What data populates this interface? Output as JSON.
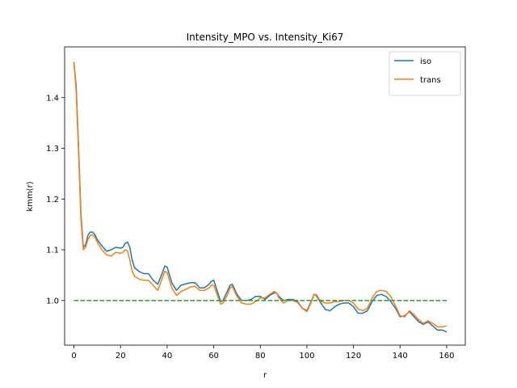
{
  "chart_data": {
    "type": "line",
    "title": "Intensity_MPO vs. Intensity_Ki67",
    "xlabel": "r",
    "ylabel": "kmm(r)",
    "xlim": [
      -4,
      168
    ],
    "ylim": [
      0.912,
      1.5
    ],
    "xticks": [
      0,
      20,
      40,
      60,
      80,
      100,
      120,
      140,
      160
    ],
    "yticks": [
      1.0,
      1.1,
      1.2,
      1.3,
      1.4
    ],
    "ytick_labels": [
      "1.0",
      "1.1",
      "1.2",
      "1.3",
      "1.4"
    ],
    "grid": false,
    "legend_position": "top-right",
    "series": [
      {
        "name": "iso",
        "color": "#1f77b4",
        "style": "solid",
        "x": [
          0,
          1,
          2,
          3,
          4,
          5,
          6,
          7,
          8,
          9,
          10,
          12,
          14,
          16,
          18,
          20,
          21,
          22,
          23,
          24,
          25,
          26,
          28,
          30,
          32,
          34,
          36,
          38,
          39,
          40,
          42,
          44,
          46,
          48,
          50,
          52,
          54,
          56,
          58,
          59,
          60,
          62,
          63,
          64,
          66,
          67,
          68,
          70,
          72,
          74,
          76,
          78,
          80,
          82,
          84,
          86,
          87,
          88,
          90,
          92,
          94,
          96,
          98,
          100,
          102,
          103,
          104,
          106,
          108,
          110,
          112,
          114,
          116,
          118,
          120,
          122,
          124,
          126,
          128,
          130,
          132,
          134,
          136,
          138,
          140,
          142,
          144,
          146,
          148,
          150,
          152,
          154,
          156,
          158,
          160
        ],
        "y": [
          1.47,
          1.42,
          1.3,
          1.17,
          1.105,
          1.11,
          1.128,
          1.135,
          1.135,
          1.13,
          1.12,
          1.108,
          1.097,
          1.1,
          1.105,
          1.103,
          1.105,
          1.113,
          1.115,
          1.105,
          1.08,
          1.065,
          1.057,
          1.053,
          1.053,
          1.04,
          1.032,
          1.055,
          1.068,
          1.066,
          1.035,
          1.02,
          1.03,
          1.033,
          1.035,
          1.035,
          1.025,
          1.025,
          1.032,
          1.038,
          1.04,
          1.012,
          0.998,
          1.0,
          1.02,
          1.03,
          1.032,
          1.012,
          1.0,
          1.0,
          1.002,
          1.008,
          1.008,
          1.002,
          1.01,
          1.015,
          1.015,
          1.008,
          1.0,
          1.002,
          1.002,
          0.998,
          0.985,
          0.98,
          1.0,
          1.012,
          1.01,
          0.995,
          0.982,
          0.98,
          0.988,
          0.993,
          0.995,
          0.995,
          0.988,
          0.975,
          0.975,
          0.98,
          0.998,
          1.01,
          1.012,
          1.008,
          0.998,
          0.985,
          0.968,
          0.97,
          0.978,
          0.968,
          0.958,
          0.953,
          0.958,
          0.95,
          0.942,
          0.942,
          0.938
        ]
      },
      {
        "name": "trans",
        "color": "#ff7f0e",
        "style": "solid",
        "x": [
          0,
          1,
          2,
          3,
          4,
          5,
          6,
          7,
          8,
          9,
          10,
          12,
          14,
          16,
          18,
          20,
          21,
          22,
          23,
          24,
          25,
          26,
          28,
          30,
          32,
          34,
          36,
          38,
          39,
          40,
          42,
          44,
          46,
          48,
          50,
          52,
          54,
          56,
          58,
          59,
          60,
          62,
          63,
          64,
          66,
          67,
          68,
          70,
          72,
          74,
          76,
          78,
          80,
          82,
          84,
          86,
          87,
          88,
          90,
          92,
          94,
          96,
          98,
          100,
          102,
          103,
          104,
          106,
          108,
          110,
          112,
          114,
          116,
          118,
          120,
          122,
          124,
          126,
          128,
          130,
          132,
          134,
          136,
          138,
          140,
          142,
          144,
          146,
          148,
          150,
          152,
          154,
          156,
          158,
          160
        ],
        "y": [
          1.47,
          1.41,
          1.29,
          1.16,
          1.1,
          1.105,
          1.12,
          1.128,
          1.13,
          1.125,
          1.115,
          1.1,
          1.09,
          1.088,
          1.095,
          1.093,
          1.095,
          1.1,
          1.098,
          1.08,
          1.058,
          1.048,
          1.042,
          1.04,
          1.04,
          1.03,
          1.02,
          1.045,
          1.058,
          1.055,
          1.025,
          1.01,
          1.018,
          1.022,
          1.027,
          1.028,
          1.02,
          1.02,
          1.025,
          1.03,
          1.03,
          1.005,
          0.993,
          0.995,
          1.012,
          1.025,
          1.028,
          1.008,
          0.995,
          0.993,
          0.993,
          0.998,
          1.005,
          1.005,
          1.012,
          1.018,
          1.015,
          1.005,
          0.995,
          1.0,
          1.0,
          0.996,
          0.985,
          0.978,
          0.998,
          1.012,
          1.012,
          0.998,
          0.995,
          0.995,
          0.998,
          0.998,
          1.0,
          1.0,
          0.995,
          0.983,
          0.98,
          0.985,
          1.005,
          1.018,
          1.02,
          1.018,
          1.008,
          0.99,
          0.97,
          0.968,
          0.98,
          0.972,
          0.962,
          0.955,
          0.96,
          0.955,
          0.948,
          0.948,
          0.95
        ]
      },
      {
        "name": "",
        "color": "#2ca02c",
        "style": "dashed",
        "x": [
          0,
          160
        ],
        "y": [
          1.0,
          1.0
        ]
      }
    ]
  }
}
